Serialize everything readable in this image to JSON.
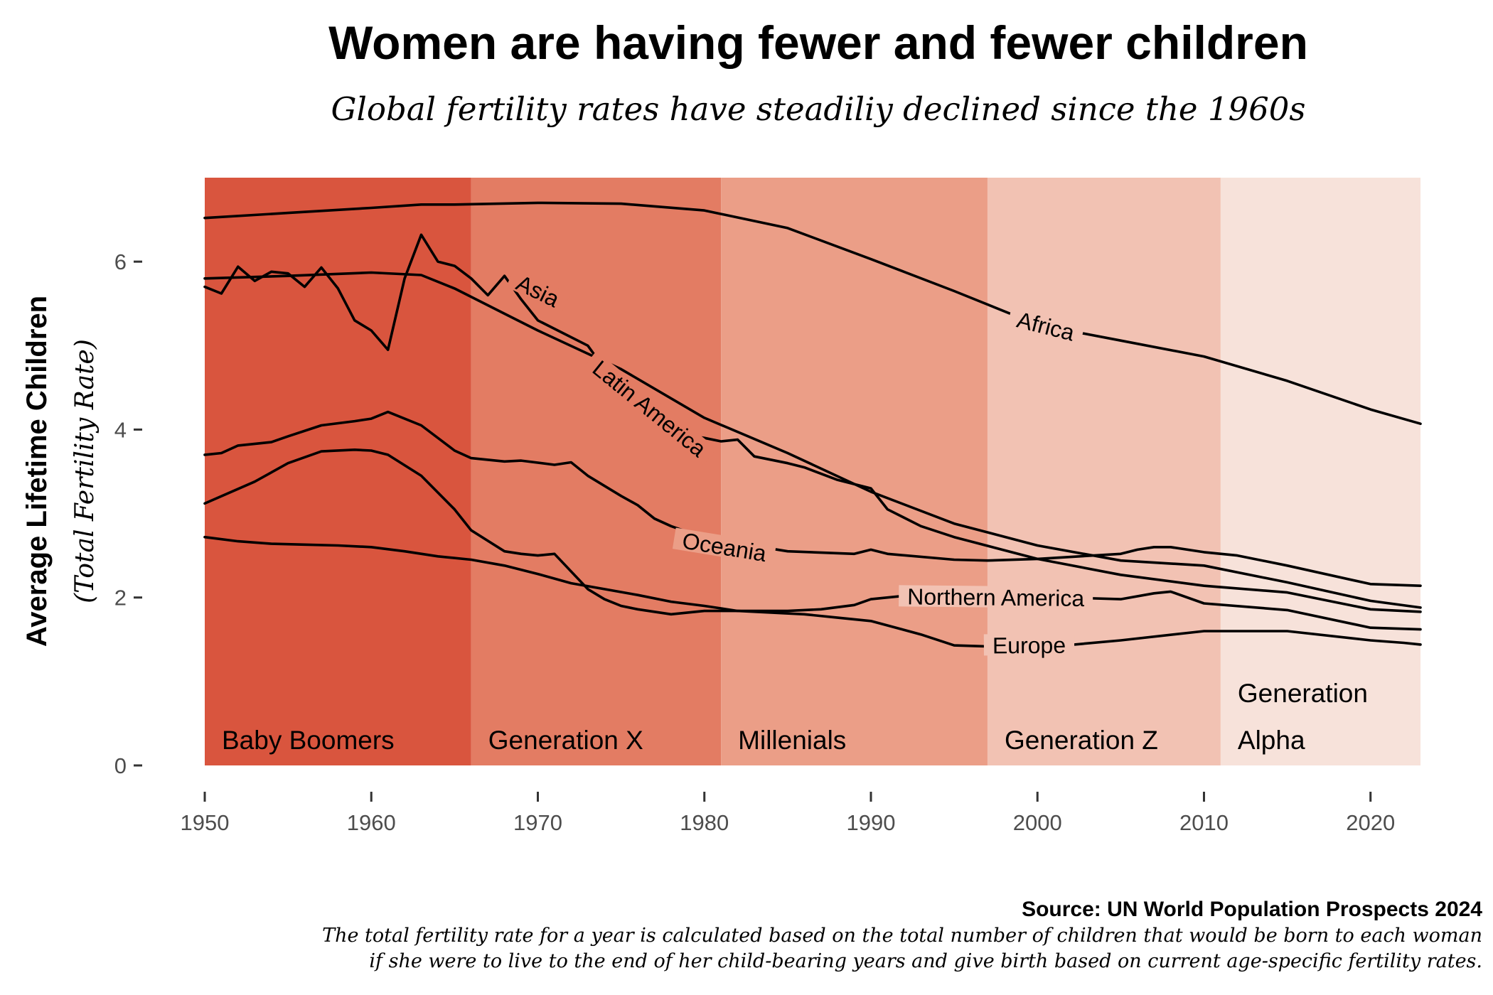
{
  "chart_data": {
    "type": "line",
    "title": "Women are having fewer and fewer children",
    "subtitle": "Global fertility rates have steadiliy declined since the 1960s",
    "ylabel": "Average Lifetime Children",
    "ylabel_sub": "(Total Fertility Rate)",
    "xlim": [
      1950,
      2023
    ],
    "ylim": [
      0,
      7
    ],
    "x_ticks": [
      1950,
      1960,
      1970,
      1980,
      1990,
      2000,
      2010,
      2020
    ],
    "y_ticks": [
      0,
      2,
      4,
      6
    ],
    "grid": false,
    "eras": [
      {
        "label": "Baby Boomers",
        "start": 1950,
        "end": 1966,
        "color": "#d9553e"
      },
      {
        "label": "Generation X",
        "start": 1966,
        "end": 1981,
        "color": "#e37c63"
      },
      {
        "label": "Millenials",
        "start": 1981,
        "end": 1997,
        "color": "#eb9e87"
      },
      {
        "label": "Generation Z",
        "start": 1997,
        "end": 2011,
        "color": "#f2c2b3"
      },
      {
        "label": "Generation Alpha",
        "label_lines": [
          "Generation",
          "Alpha"
        ],
        "start": 2011,
        "end": 2023,
        "color": "#f7e2da"
      }
    ],
    "series": [
      {
        "name": "Africa",
        "x": [
          1950,
          1955,
          1960,
          1963,
          1965,
          1970,
          1975,
          1980,
          1985,
          1990,
          1995,
          2000,
          2005,
          2010,
          2015,
          2020,
          2023
        ],
        "values": [
          6.52,
          6.58,
          6.64,
          6.68,
          6.68,
          6.7,
          6.69,
          6.61,
          6.4,
          6.03,
          5.65,
          5.25,
          5.06,
          4.87,
          4.58,
          4.24,
          4.07
        ]
      },
      {
        "name": "Asia",
        "x": [
          1950,
          1955,
          1960,
          1963,
          1965,
          1968,
          1970,
          1975,
          1980,
          1985,
          1990,
          1995,
          2000,
          2005,
          2010,
          2015,
          2020,
          2023
        ],
        "values": [
          5.8,
          5.83,
          5.87,
          5.84,
          5.68,
          5.38,
          5.18,
          4.72,
          4.14,
          3.72,
          3.26,
          2.88,
          2.62,
          2.44,
          2.38,
          2.18,
          1.96,
          1.88
        ]
      },
      {
        "name": "Latin America",
        "x": [
          1950,
          1951,
          1952,
          1953,
          1954,
          1955,
          1956,
          1957,
          1958,
          1959,
          1960,
          1961,
          1962,
          1963,
          1964,
          1965,
          1966,
          1967,
          1968,
          1969,
          1970,
          1973,
          1975,
          1977,
          1978,
          1980,
          1981,
          1982,
          1983,
          1985,
          1986,
          1988,
          1990,
          1991,
          1993,
          1995,
          2000,
          2005,
          2010,
          2015,
          2020,
          2023
        ],
        "values": [
          5.7,
          5.62,
          5.94,
          5.77,
          5.88,
          5.86,
          5.7,
          5.93,
          5.68,
          5.3,
          5.18,
          4.95,
          5.8,
          6.32,
          6.0,
          5.95,
          5.8,
          5.6,
          5.83,
          5.55,
          5.3,
          5.0,
          4.45,
          4.08,
          3.96,
          3.9,
          3.86,
          3.88,
          3.68,
          3.6,
          3.55,
          3.4,
          3.3,
          3.05,
          2.85,
          2.72,
          2.46,
          2.27,
          2.14,
          2.06,
          1.86,
          1.83
        ]
      },
      {
        "name": "Oceania",
        "x": [
          1950,
          1951,
          1952,
          1954,
          1955,
          1957,
          1959,
          1960,
          1961,
          1963,
          1965,
          1966,
          1968,
          1969,
          1971,
          1972,
          1973,
          1975,
          1976,
          1977,
          1978,
          1980,
          1985,
          1989,
          1990,
          1991,
          1995,
          1997,
          2000,
          2005,
          2006,
          2007,
          2008,
          2010,
          2012,
          2015,
          2020,
          2023
        ],
        "values": [
          3.7,
          3.72,
          3.81,
          3.85,
          3.92,
          4.05,
          4.1,
          4.13,
          4.21,
          4.05,
          3.75,
          3.66,
          3.62,
          3.63,
          3.58,
          3.61,
          3.45,
          3.21,
          3.1,
          2.94,
          2.85,
          2.71,
          2.55,
          2.52,
          2.57,
          2.52,
          2.45,
          2.44,
          2.46,
          2.52,
          2.57,
          2.6,
          2.6,
          2.54,
          2.5,
          2.38,
          2.16,
          2.14
        ]
      },
      {
        "name": "Northern America",
        "x": [
          1950,
          1953,
          1955,
          1957,
          1959,
          1960,
          1961,
          1963,
          1965,
          1966,
          1968,
          1969,
          1970,
          1971,
          1973,
          1974,
          1975,
          1976,
          1978,
          1980,
          1985,
          1987,
          1989,
          1990,
          1993,
          1995,
          2000,
          2005,
          2007,
          2008,
          2010,
          2015,
          2020,
          2023
        ],
        "values": [
          3.12,
          3.38,
          3.6,
          3.74,
          3.76,
          3.75,
          3.7,
          3.45,
          3.05,
          2.8,
          2.55,
          2.52,
          2.5,
          2.52,
          2.1,
          1.98,
          1.9,
          1.86,
          1.8,
          1.84,
          1.84,
          1.86,
          1.91,
          1.98,
          2.04,
          2.02,
          2.01,
          1.98,
          2.05,
          2.07,
          1.93,
          1.85,
          1.64,
          1.62
        ]
      },
      {
        "name": "Europe",
        "x": [
          1950,
          1952,
          1954,
          1956,
          1958,
          1960,
          1962,
          1964,
          1966,
          1968,
          1970,
          1972,
          1974,
          1976,
          1978,
          1980,
          1982,
          1984,
          1986,
          1988,
          1990,
          1993,
          1995,
          2000,
          2005,
          2010,
          2015,
          2020,
          2022,
          2023
        ],
        "values": [
          2.72,
          2.67,
          2.64,
          2.63,
          2.62,
          2.6,
          2.55,
          2.49,
          2.45,
          2.38,
          2.28,
          2.17,
          2.1,
          2.03,
          1.95,
          1.9,
          1.84,
          1.82,
          1.8,
          1.76,
          1.72,
          1.56,
          1.43,
          1.4,
          1.49,
          1.6,
          1.6,
          1.49,
          1.46,
          1.44
        ]
      }
    ],
    "series_labels": [
      {
        "series": "Africa",
        "text": "Africa",
        "x": 2000.5,
        "y": 5.23
      },
      {
        "series": "Asia",
        "text": "Asia",
        "x": 1970,
        "y": 5.65
      },
      {
        "series": "Latin America",
        "text": "Latin America",
        "x": 1976.7,
        "y": 4.25
      },
      {
        "series": "Oceania",
        "text": "Oceania",
        "x": 1981.2,
        "y": 2.6
      },
      {
        "series": "Northern America",
        "text": "Northern America",
        "x": 1997.5,
        "y": 2.0
      },
      {
        "series": "Europe",
        "text": "Europe",
        "x": 1999.5,
        "y": 1.43
      }
    ],
    "source": "Source: UN World Population Prospects 2024",
    "note_lines": [
      "The total fertility rate for a year is calculated based on the total number of children that would be born to each woman",
      "if she were to live to the end of her child-bearing years and give birth based on current age-specific fertility rates."
    ]
  }
}
